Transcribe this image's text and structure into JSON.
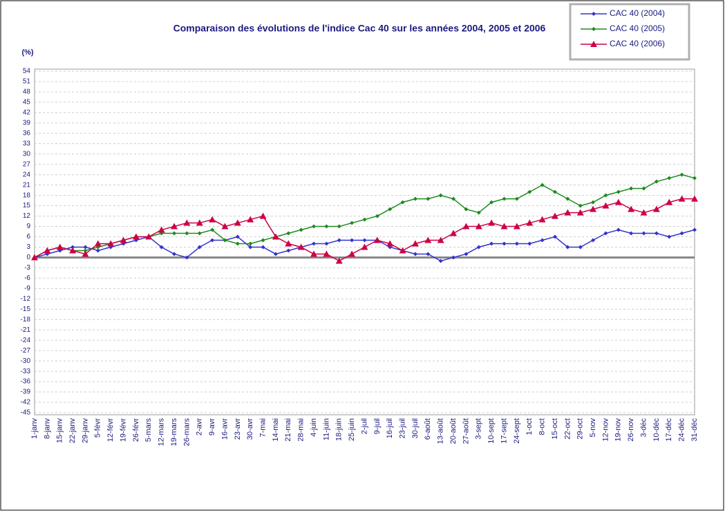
{
  "chart_data": {
    "type": "line",
    "title": "Comparaison des évolutions de l'indice Cac 40 sur les années 2004,  2005 et 2006",
    "y_label": "(%)",
    "categories": [
      "1-janv",
      "8-janv",
      "15-janv",
      "22-janv",
      "29-janv",
      "5-févr",
      "12-févr",
      "19-févr",
      "26-févr",
      "5-mars",
      "12-mars",
      "19-mars",
      "26-mars",
      "2-avr",
      "9-avr",
      "16-avr",
      "23-avr",
      "30-avr",
      "7-mai",
      "14-mai",
      "21-mai",
      "28-mai",
      "4-juin",
      "11-juin",
      "18-juin",
      "25-juin",
      "2-juil",
      "9-juil",
      "16-juil",
      "23-juil",
      "30-juil",
      "6-août",
      "13-août",
      "20-août",
      "27-août",
      "3-sept",
      "10-sept",
      "17-sept",
      "24-sept",
      "1-oct",
      "8-oct",
      "15-oct",
      "22-oct",
      "29-oct",
      "5-nov",
      "12-nov",
      "19-nov",
      "26-nov",
      "3-déc",
      "10-déc",
      "17-déc",
      "24-déc",
      "31-déc"
    ],
    "series": [
      {
        "name": "CAC 40 (2004)",
        "color": "#3333cc",
        "marker": "diamond",
        "values": [
          0,
          1,
          2,
          3,
          3,
          2,
          3,
          4,
          5,
          6,
          3,
          1,
          0,
          3,
          5,
          5,
          6,
          3,
          3,
          1,
          2,
          3,
          4,
          4,
          5,
          5,
          5,
          5,
          3,
          2,
          1,
          1,
          -1,
          0,
          1,
          3,
          4,
          4,
          4,
          4,
          5,
          6,
          3,
          3,
          5,
          7,
          8,
          7,
          7,
          7,
          6,
          7,
          8
        ]
      },
      {
        "name": "CAC 40 (2005)",
        "color": "#1f8a1f",
        "marker": "diamond",
        "values": [
          0,
          2,
          3,
          2,
          2,
          3,
          4,
          5,
          6,
          6,
          7,
          7,
          7,
          7,
          8,
          5,
          4,
          4,
          5,
          6,
          7,
          8,
          9,
          9,
          9,
          10,
          11,
          12,
          14,
          16,
          17,
          17,
          18,
          17,
          14,
          13,
          16,
          17,
          17,
          19,
          21,
          19,
          17,
          15,
          16,
          18,
          19,
          20,
          20,
          22,
          23,
          24,
          23
        ]
      },
      {
        "name": "CAC 40 (2006)",
        "color": "#cc0044",
        "marker": "triangle",
        "values": [
          0,
          2,
          3,
          2,
          1,
          4,
          4,
          5,
          6,
          6,
          8,
          9,
          10,
          10,
          11,
          9,
          10,
          11,
          12,
          6,
          4,
          3,
          1,
          1,
          -1,
          1,
          3,
          5,
          4,
          2,
          4,
          5,
          5,
          7,
          9,
          9,
          10,
          9,
          9,
          10,
          11,
          12,
          13,
          13,
          14,
          15,
          16,
          14,
          13,
          14,
          16,
          17,
          17
        ]
      }
    ],
    "ylim": [
      -45,
      54
    ],
    "yticks": [
      -45,
      -42,
      -39,
      -36,
      -33,
      -30,
      -27,
      -24,
      -21,
      -18,
      -15,
      -12,
      -9,
      -6,
      -3,
      0,
      3,
      6,
      9,
      12,
      15,
      18,
      21,
      24,
      27,
      30,
      33,
      36,
      39,
      42,
      45,
      48,
      51,
      54
    ],
    "grid": true
  }
}
